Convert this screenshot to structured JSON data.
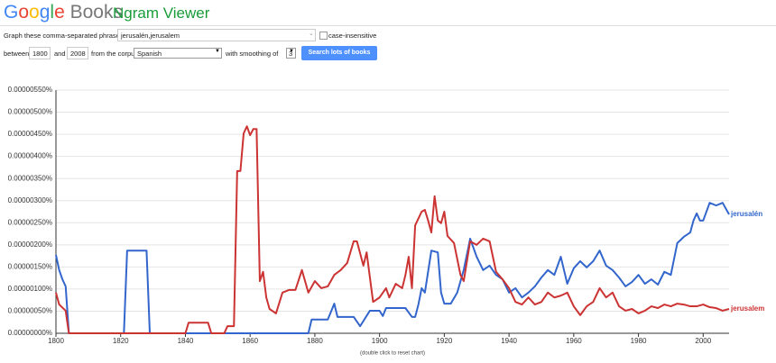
{
  "header": {
    "logo_google": "Google",
    "logo_books": "Books",
    "title": "Ngram Viewer"
  },
  "form": {
    "phrases_label": "Graph these comma-separated phrases:",
    "phrases": "jerusalén,jerusalem",
    "case_insensitive": "case-insensitive",
    "between": "between",
    "start_year": "1800",
    "and": "and",
    "end_year": "2008",
    "from_corpus": "from the corpus",
    "corpus": "Spanish",
    "smoothing_label": "with smoothing of",
    "smoothing": "3",
    "button": "Search lots of books"
  },
  "chart_data": {
    "type": "line",
    "xlim": [
      1800,
      2008
    ],
    "xticks": [
      1800,
      1820,
      1840,
      1860,
      1880,
      1900,
      1920,
      1940,
      1960,
      1980,
      2000
    ],
    "ylim": [
      0,
      5.5e-06
    ],
    "yticks": [
      {
        "value": 0,
        "label": "0.00000000%"
      },
      {
        "value": 5e-07,
        "label": "0.00000050%"
      },
      {
        "value": 1e-06,
        "label": "0.00000100%"
      },
      {
        "value": 1.5e-06,
        "label": "0.00000150%"
      },
      {
        "value": 2e-06,
        "label": "0.00000200%"
      },
      {
        "value": 2.5e-06,
        "label": "0.00000250%"
      },
      {
        "value": 3e-06,
        "label": "0.00000300%"
      },
      {
        "value": 3.5e-06,
        "label": "0.00000350%"
      },
      {
        "value": 4e-06,
        "label": "0.00000400%"
      },
      {
        "value": 4.5e-06,
        "label": "0.00000450%"
      },
      {
        "value": 5e-06,
        "label": "0.00000500%"
      },
      {
        "value": 5.5e-06,
        "label": "0.00000550%"
      }
    ],
    "grid": true,
    "series": [
      {
        "name": "jerusalén",
        "color": "#3366cc",
        "x": [
          1800,
          1801,
          1802,
          1803,
          1804,
          1821,
          1822,
          1828,
          1829,
          1878,
          1879,
          1884,
          1886,
          1887,
          1892,
          1894,
          1897,
          1900,
          1901,
          1902,
          1908,
          1910,
          1911,
          1912,
          1913,
          1914,
          1916,
          1918,
          1919,
          1920,
          1922,
          1924,
          1926,
          1928,
          1930,
          1932,
          1934,
          1936,
          1938,
          1940,
          1942,
          1944,
          1946,
          1948,
          1950,
          1952,
          1954,
          1956,
          1958,
          1960,
          1962,
          1964,
          1966,
          1968,
          1970,
          1972,
          1974,
          1976,
          1978,
          1980,
          1982,
          1984,
          1986,
          1988,
          1990,
          1992,
          1994,
          1996,
          1997,
          1998,
          1999,
          2000,
          2002,
          2004,
          2006,
          2008
        ],
        "values": [
          1.77e-06,
          1.43e-06,
          1.22e-06,
          1.06e-06,
          0,
          0,
          1.87e-06,
          1.87e-06,
          0,
          0,
          3.1e-07,
          3.1e-07,
          6.7e-07,
          3.7e-07,
          3.7e-07,
          1.6e-07,
          5.1e-07,
          5.1e-07,
          3.9e-07,
          5.7e-07,
          5.7e-07,
          3.7e-07,
          3.7e-07,
          6.5e-07,
          1.02e-06,
          9.2e-07,
          1.87e-06,
          1.83e-06,
          9.2e-07,
          6.7e-07,
          6.7e-07,
          9.2e-07,
          1.43e-06,
          2.14e-06,
          1.73e-06,
          1.43e-06,
          1.53e-06,
          1.32e-06,
          1.22e-06,
          9.2e-07,
          1.02e-06,
          8.1e-07,
          9.2e-07,
          1.06e-06,
          1.26e-06,
          1.43e-06,
          1.32e-06,
          1.73e-06,
          1.12e-06,
          1.47e-06,
          1.63e-06,
          1.49e-06,
          1.63e-06,
          1.87e-06,
          1.53e-06,
          1.43e-06,
          1.26e-06,
          1.06e-06,
          1.16e-06,
          1.32e-06,
          1.12e-06,
          1.22e-06,
          1.1e-06,
          1.39e-06,
          1.32e-06,
          2.04e-06,
          2.18e-06,
          2.28e-06,
          2.55e-06,
          2.71e-06,
          2.55e-06,
          2.55e-06,
          2.95e-06,
          2.89e-06,
          2.95e-06,
          2.69e-06
        ]
      },
      {
        "name": "jerusalem",
        "color": "#cc3333",
        "x": [
          1800,
          1801,
          1803,
          1804,
          1840,
          1841,
          1847,
          1848,
          1852,
          1853,
          1855,
          1856,
          1857,
          1858,
          1859,
          1860,
          1861,
          1862,
          1863,
          1864,
          1865,
          1866,
          1868,
          1870,
          1872,
          1874,
          1876,
          1878,
          1880,
          1882,
          1884,
          1886,
          1888,
          1890,
          1892,
          1893,
          1895,
          1896,
          1898,
          1900,
          1902,
          1903,
          1905,
          1907,
          1908,
          1909,
          1910,
          1911,
          1913,
          1914,
          1915,
          1916,
          1917,
          1918,
          1919,
          1920,
          1921,
          1923,
          1925,
          1926,
          1927,
          1928,
          1930,
          1932,
          1934,
          1936,
          1938,
          1940,
          1942,
          1944,
          1946,
          1948,
          1950,
          1952,
          1954,
          1956,
          1958,
          1960,
          1962,
          1964,
          1966,
          1968,
          1970,
          1972,
          1974,
          1976,
          1978,
          1980,
          1982,
          1984,
          1986,
          1988,
          1990,
          1992,
          1994,
          1996,
          1998,
          2000,
          2002,
          2004,
          2006,
          2008
        ],
        "values": [
          9.2e-07,
          6.5e-07,
          5.1e-07,
          0,
          0,
          2.4e-07,
          2.4e-07,
          0,
          0,
          1.6e-07,
          1.6e-07,
          3.67e-06,
          3.67e-06,
          4.52e-06,
          4.68e-06,
          4.48e-06,
          4.62e-06,
          4.62e-06,
          1.18e-06,
          1.39e-06,
          8.1e-07,
          5.5e-07,
          4.5e-07,
          9.2e-07,
          9.8e-07,
          9.8e-07,
          1.43e-06,
          9.2e-07,
          1.18e-06,
          1.02e-06,
          1.06e-06,
          1.32e-06,
          1.43e-06,
          1.59e-06,
          2.08e-06,
          2.08e-06,
          1.53e-06,
          1.83e-06,
          7.1e-07,
          8.1e-07,
          1.02e-06,
          8.1e-07,
          1.12e-06,
          1.02e-06,
          1.32e-06,
          1.73e-06,
          1.02e-06,
          2.44e-06,
          2.75e-06,
          2.79e-06,
          2.55e-06,
          2.28e-06,
          3.1e-06,
          2.55e-06,
          2.49e-06,
          2.75e-06,
          2.2e-06,
          2.04e-06,
          1.32e-06,
          1.18e-06,
          1.63e-06,
          2.08e-06,
          2e-06,
          2.14e-06,
          2.08e-06,
          1.39e-06,
          1.22e-06,
          1.02e-06,
          7.1e-07,
          6.5e-07,
          8.1e-07,
          6.5e-07,
          7.1e-07,
          9.2e-07,
          8.1e-07,
          8.5e-07,
          9.2e-07,
          6.1e-07,
          4.1e-07,
          6.1e-07,
          7.1e-07,
          1.02e-06,
          8.1e-07,
          9.2e-07,
          6.1e-07,
          5.1e-07,
          5.5e-07,
          4.5e-07,
          5.1e-07,
          6.1e-07,
          5.7e-07,
          6.5e-07,
          6.1e-07,
          6.7e-07,
          6.5e-07,
          6.1e-07,
          6.1e-07,
          6.5e-07,
          5.9e-07,
          5.7e-07,
          5.1e-07,
          5.5e-07
        ]
      }
    ],
    "note": "(double click to reset chart)"
  }
}
